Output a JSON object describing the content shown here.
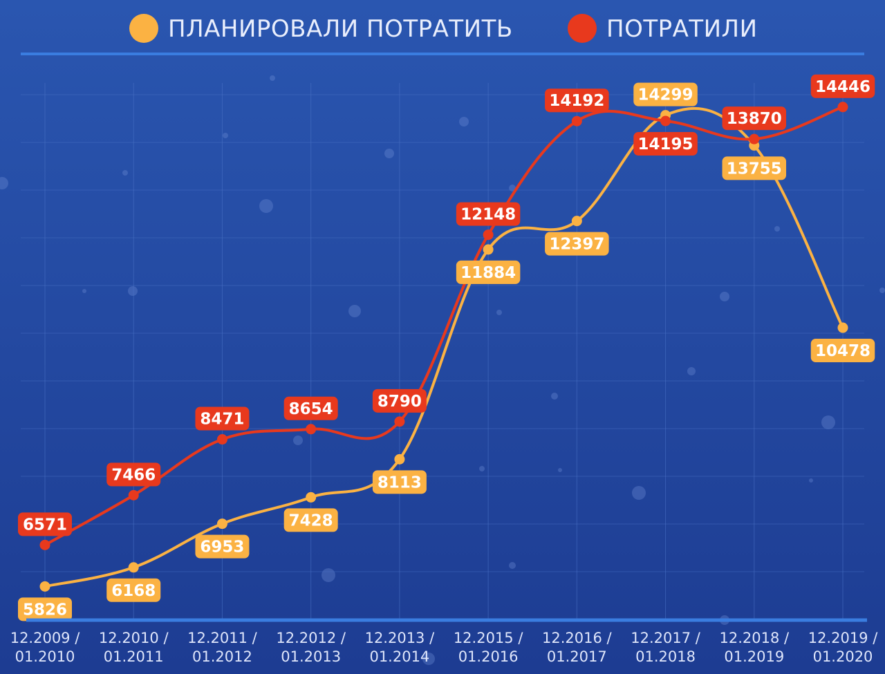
{
  "colors": {
    "background_top": "#2a56b0",
    "background_bottom": "#1d3c92",
    "planned": "#fbb243",
    "spent": "#e8391d",
    "grid": "#4a72c6",
    "baseline": "#3a7de0"
  },
  "chart_data": {
    "type": "line",
    "categories": [
      [
        "12.2009 /",
        "01.2010"
      ],
      [
        "12.2010 /",
        "01.2011"
      ],
      [
        "12.2011 /",
        "01.2012"
      ],
      [
        "12.2012 /",
        "01.2013"
      ],
      [
        "12.2013 /",
        "01.2014"
      ],
      [
        "12.2015 /",
        "01.2016"
      ],
      [
        "12.2016 /",
        "01.2017"
      ],
      [
        "12.2017 /",
        "01.2018"
      ],
      [
        "12.2018 /",
        "01.2019"
      ],
      [
        "12.2019 /",
        "01.2020"
      ]
    ],
    "series": [
      {
        "name": "ПЛАНИРОВАЛИ ПОТРАТИТЬ",
        "color": "#fbb243",
        "values": [
          5826,
          6168,
          6953,
          7428,
          8113,
          11884,
          12397,
          14299,
          13755,
          10478
        ]
      },
      {
        "name": "ПОТРАТИЛИ",
        "color": "#e8391d",
        "values": [
          6571,
          7466,
          8471,
          8654,
          8790,
          12148,
          14192,
          14195,
          13870,
          14446
        ]
      }
    ],
    "ylim": [
      4500,
      15500
    ],
    "grid": true,
    "legend_position": "top-center",
    "data_labels": true
  }
}
